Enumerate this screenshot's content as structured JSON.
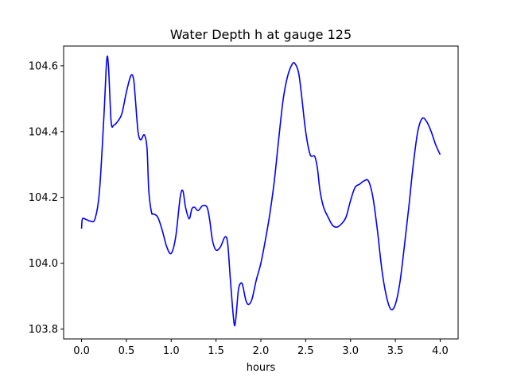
{
  "chart_data": {
    "type": "line",
    "title": "Water Depth h at gauge 125",
    "xlabel": "hours",
    "ylabel": "",
    "xlim": [
      -0.2,
      4.2
    ],
    "ylim": [
      103.77,
      104.66
    ],
    "xticks": [
      0.0,
      0.5,
      1.0,
      1.5,
      2.0,
      2.5,
      3.0,
      3.5,
      4.0
    ],
    "xtick_labels": [
      "0.0",
      "0.5",
      "1.0",
      "1.5",
      "2.0",
      "2.5",
      "3.0",
      "3.5",
      "4.0"
    ],
    "yticks": [
      103.8,
      104.0,
      104.2,
      104.4,
      104.6
    ],
    "ytick_labels": [
      "103.8",
      "104.0",
      "104.2",
      "104.4",
      "104.6"
    ],
    "grid": false,
    "series": [
      {
        "color": "#0000ff",
        "x": [
          0.0,
          0.01,
          0.05,
          0.1,
          0.15,
          0.2,
          0.25,
          0.28,
          0.3,
          0.33,
          0.36,
          0.4,
          0.45,
          0.5,
          0.55,
          0.58,
          0.6,
          0.63,
          0.66,
          0.7,
          0.73,
          0.75,
          0.78,
          0.8,
          0.85,
          0.9,
          0.95,
          1.0,
          1.05,
          1.1,
          1.13,
          1.16,
          1.2,
          1.23,
          1.26,
          1.3,
          1.35,
          1.4,
          1.43,
          1.46,
          1.5,
          1.55,
          1.6,
          1.63,
          1.66,
          1.7,
          1.72,
          1.75,
          1.78,
          1.8,
          1.83,
          1.86,
          1.9,
          1.95,
          2.0,
          2.05,
          2.1,
          2.15,
          2.2,
          2.25,
          2.3,
          2.35,
          2.38,
          2.42,
          2.45,
          2.5,
          2.55,
          2.6,
          2.63,
          2.66,
          2.7,
          2.75,
          2.8,
          2.85,
          2.9,
          2.95,
          3.0,
          3.05,
          3.1,
          3.15,
          3.2,
          3.25,
          3.3,
          3.35,
          3.4,
          3.45,
          3.5,
          3.55,
          3.6,
          3.65,
          3.7,
          3.75,
          3.8,
          3.85,
          3.9,
          3.95,
          4.0
        ],
        "values": [
          104.105,
          104.135,
          104.133,
          104.128,
          104.135,
          104.22,
          104.45,
          104.615,
          104.6,
          104.43,
          104.42,
          104.43,
          104.455,
          104.52,
          104.57,
          104.56,
          104.5,
          104.4,
          104.375,
          104.39,
          104.35,
          104.22,
          104.155,
          104.15,
          104.14,
          104.1,
          104.05,
          104.03,
          104.08,
          104.2,
          104.22,
          104.17,
          104.135,
          104.165,
          104.17,
          104.16,
          104.175,
          104.17,
          104.13,
          104.07,
          104.04,
          104.05,
          104.08,
          104.06,
          103.95,
          103.82,
          103.83,
          103.92,
          103.94,
          103.93,
          103.89,
          103.875,
          103.89,
          103.95,
          104.0,
          104.07,
          104.15,
          104.25,
          104.38,
          104.5,
          104.57,
          104.605,
          104.607,
          104.58,
          104.52,
          104.4,
          104.33,
          104.325,
          104.29,
          104.22,
          104.17,
          104.14,
          104.115,
          104.11,
          104.12,
          104.14,
          104.19,
          104.23,
          104.24,
          104.25,
          104.25,
          104.2,
          104.1,
          103.98,
          103.9,
          103.86,
          103.875,
          103.94,
          104.05,
          104.17,
          104.3,
          104.4,
          104.44,
          104.43,
          104.4,
          104.36,
          104.33
        ]
      }
    ]
  }
}
